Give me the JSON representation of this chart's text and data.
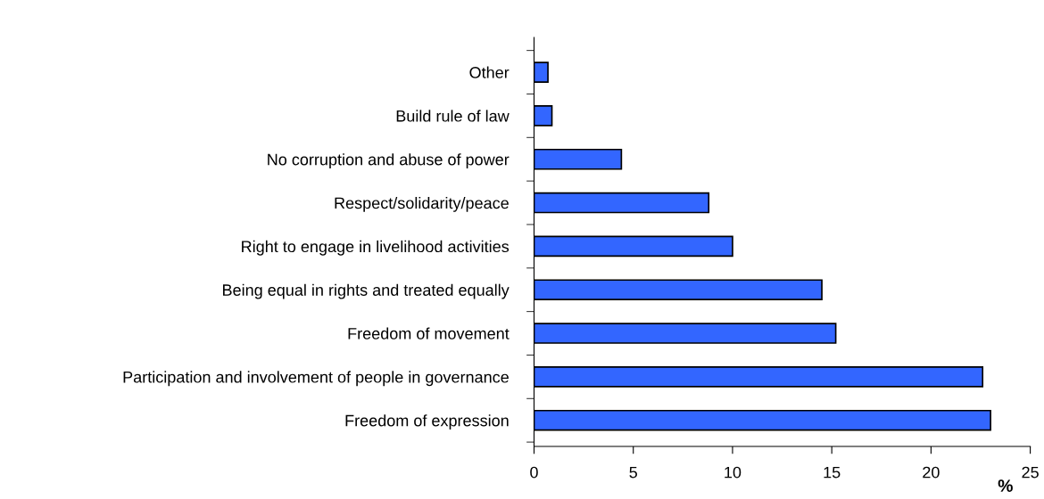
{
  "chart_data": {
    "type": "bar",
    "orientation": "horizontal",
    "xlabel": "%",
    "categories": [
      "Other",
      "Build rule of law",
      "No corruption and abuse of power",
      "Respect/solidarity/peace",
      "Right to engage in livelihood activities",
      "Being equal in rights and treated equally",
      "Freedom of movement",
      "Participation and involvement of people in governance",
      "Freedom of expression"
    ],
    "values": [
      0.7,
      0.9,
      4.4,
      8.8,
      10.0,
      14.5,
      15.2,
      22.6,
      23.0
    ],
    "color": "#3366ff",
    "xlim": [
      0,
      25
    ],
    "xticks": [
      0,
      5,
      10,
      15,
      20,
      25
    ],
    "grid": false,
    "legend": false
  }
}
